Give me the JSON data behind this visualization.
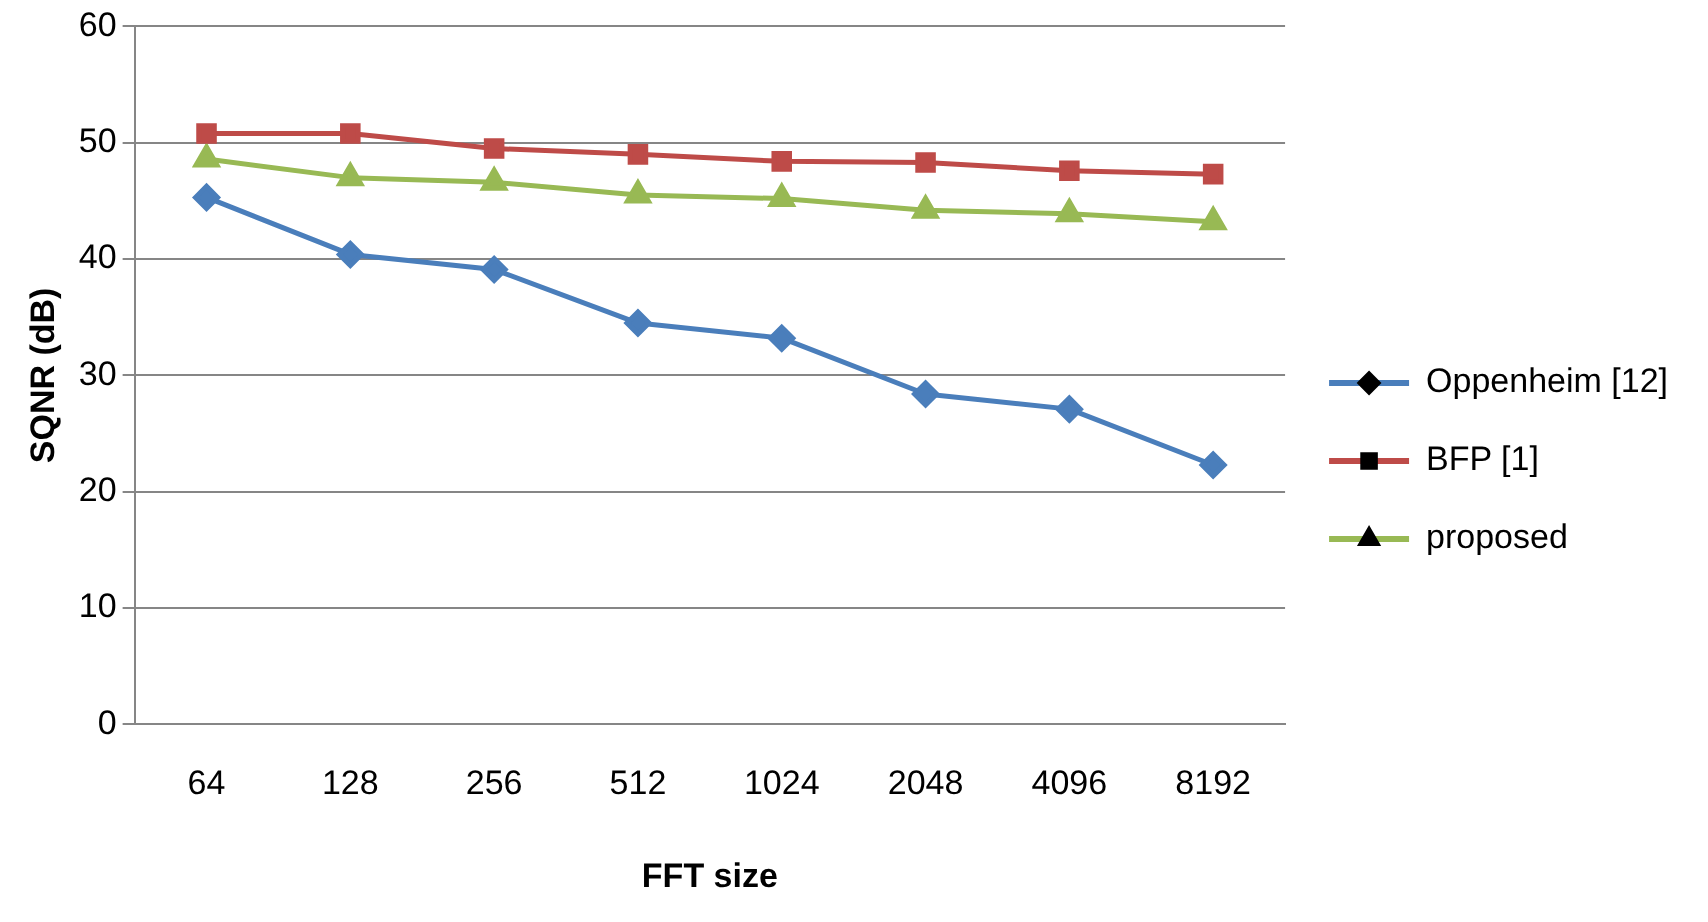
{
  "chart_data": {
    "type": "line",
    "xlabel": "FFT size",
    "ylabel": "SQNR (dB)",
    "categories": [
      "64",
      "128",
      "256",
      "512",
      "1024",
      "2048",
      "4096",
      "8192"
    ],
    "series": [
      {
        "name": "Oppenheim [12]",
        "color": "#4a7ebb",
        "marker": "diamond",
        "values": [
          45.3,
          40.4,
          39.1,
          34.5,
          33.2,
          28.4,
          27.1,
          22.3
        ]
      },
      {
        "name": "BFP [1]",
        "color": "#be4b48",
        "marker": "square",
        "values": [
          50.8,
          50.8,
          49.5,
          49.0,
          48.4,
          48.3,
          47.6,
          47.3
        ]
      },
      {
        "name": "proposed",
        "color": "#98b954",
        "marker": "triangle",
        "values": [
          48.6,
          47.0,
          46.6,
          45.5,
          45.2,
          44.2,
          43.9,
          43.2
        ]
      }
    ],
    "ylim": [
      0,
      60
    ],
    "yticks": [
      0,
      10,
      20,
      30,
      40,
      50,
      60
    ],
    "grid": "y",
    "legend": "right",
    "line_style": "solid"
  }
}
